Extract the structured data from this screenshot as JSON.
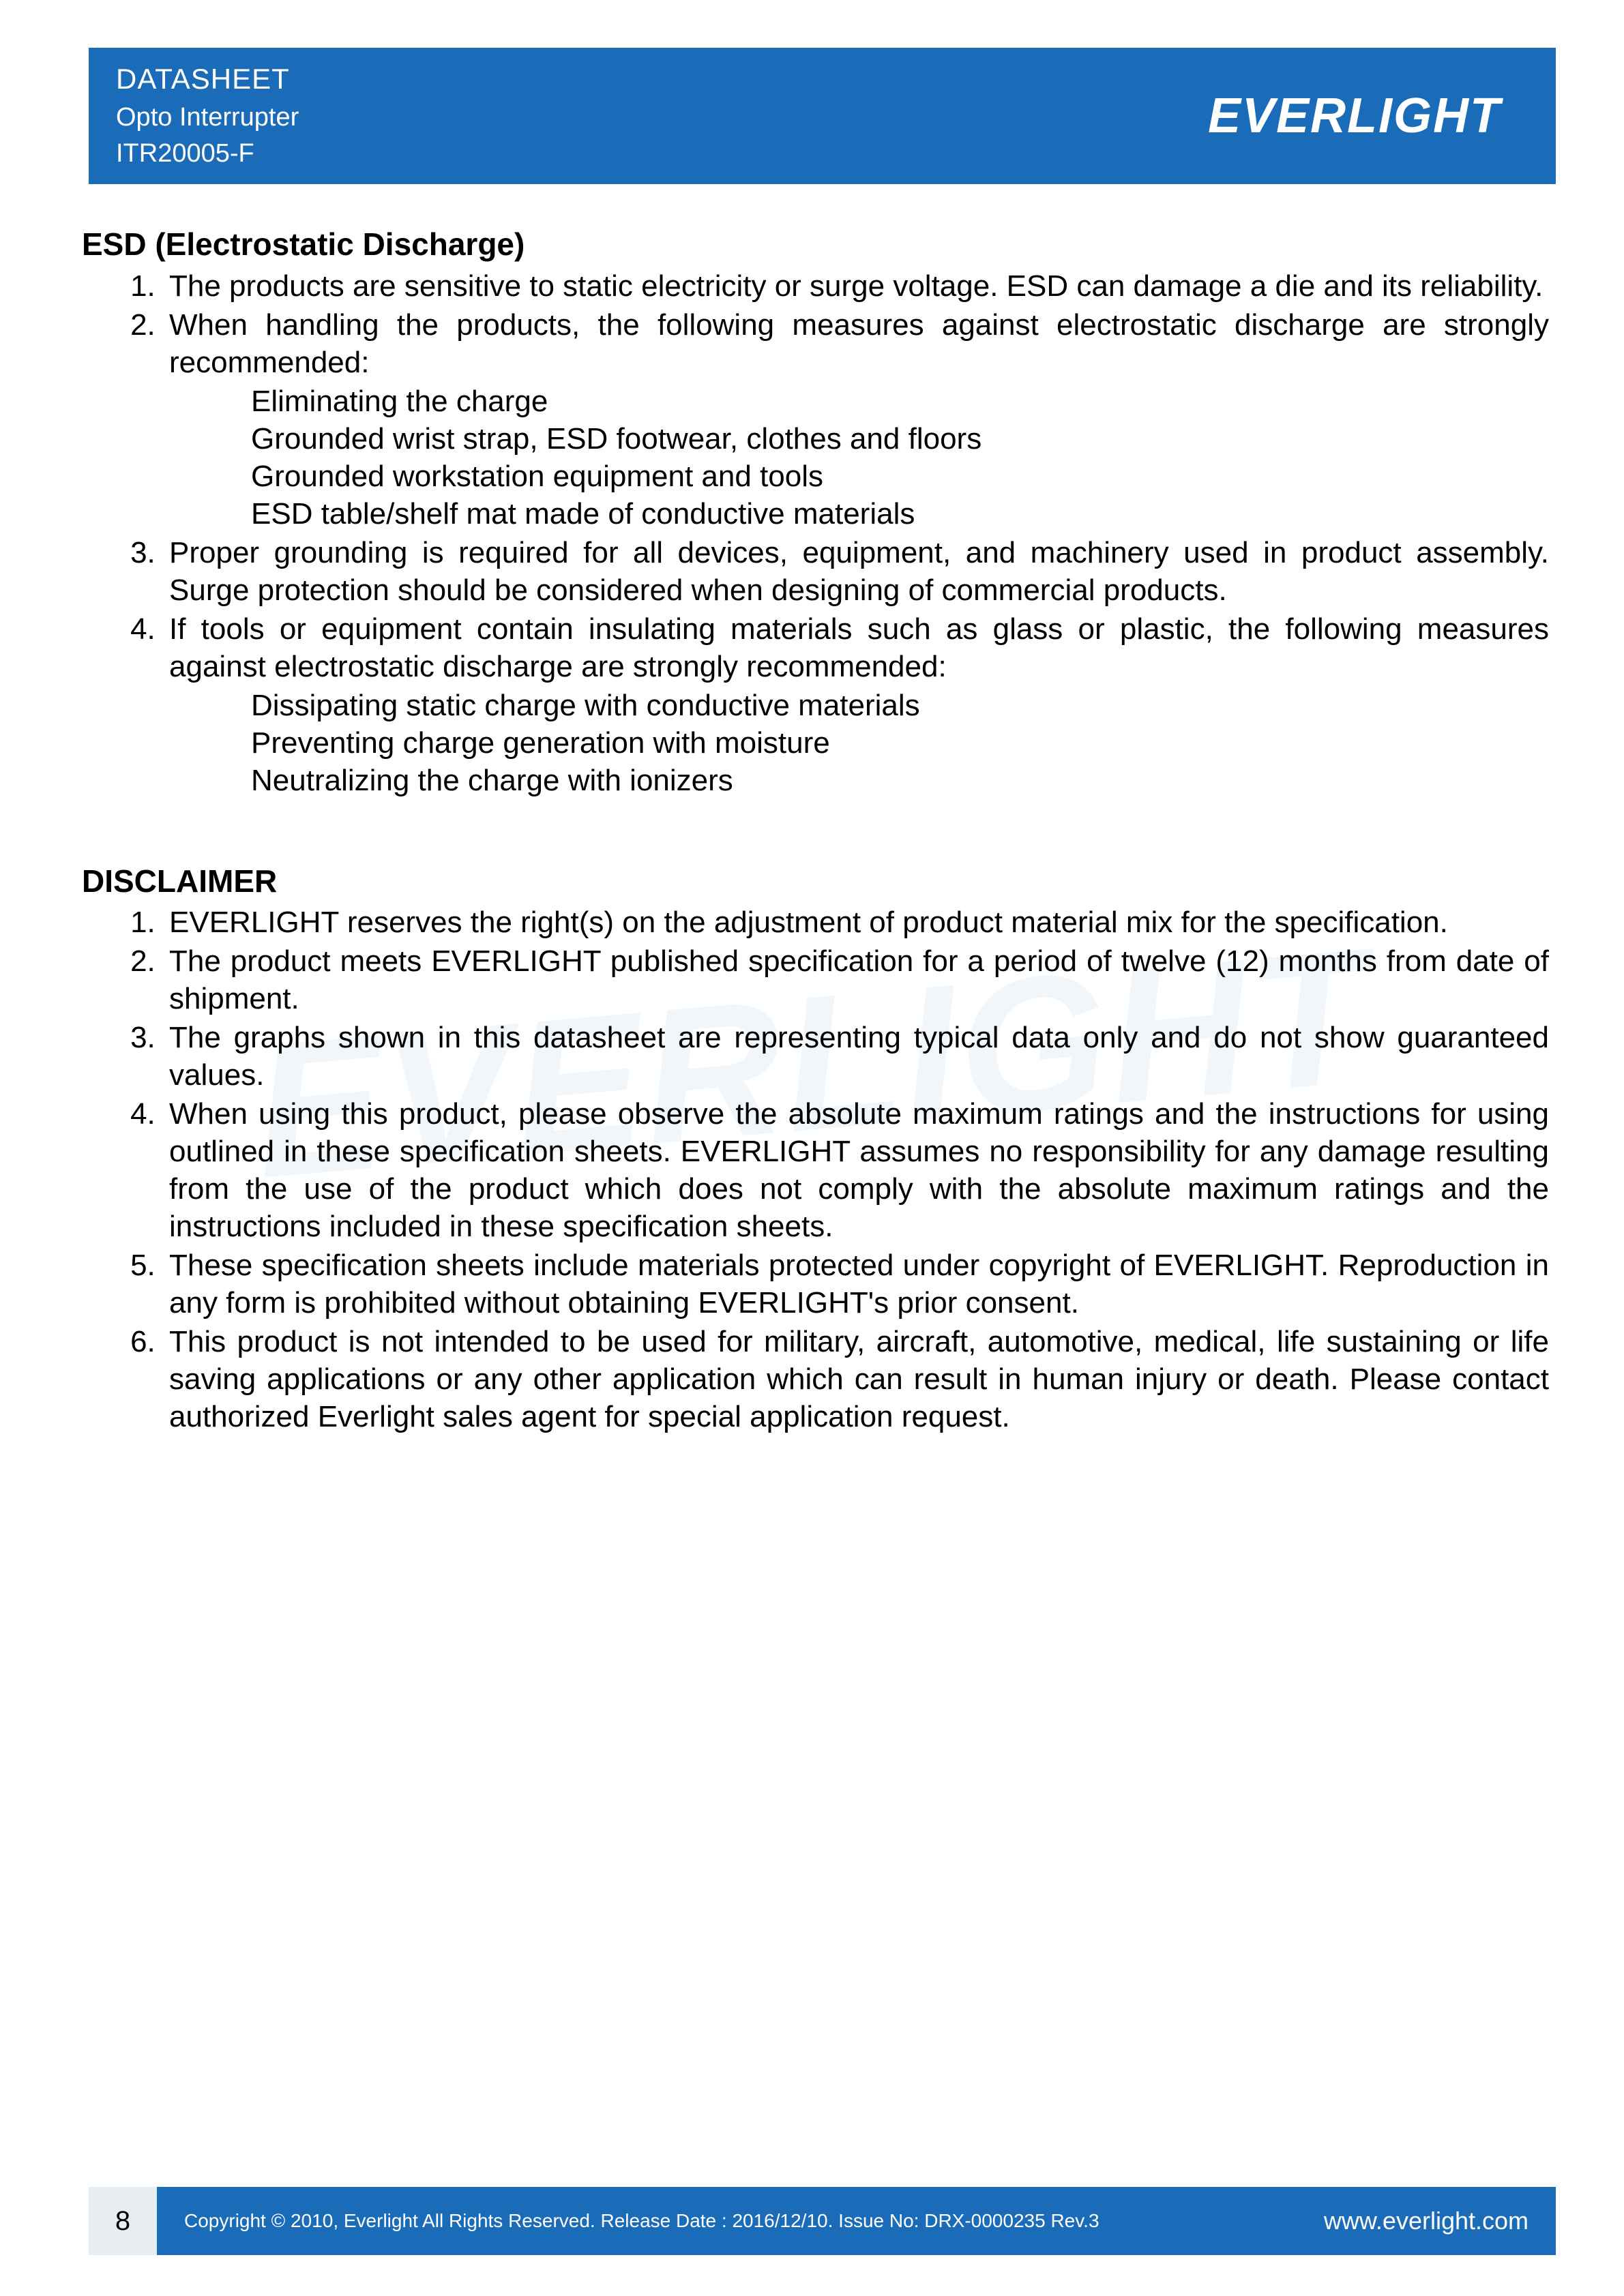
{
  "colors": {
    "brand_blue": "#1a6cb8",
    "text": "#000000",
    "white": "#ffffff",
    "pagenum_bg": "#e8edf2",
    "watermark": "rgba(200,220,240,0.25)"
  },
  "header": {
    "doc_type": "DATASHEET",
    "product_line": "Opto Interrupter",
    "part_number": "ITR20005-F",
    "logo_text": "EVERLIGHT"
  },
  "sections": [
    {
      "title": "ESD (Electrostatic Discharge)",
      "items": [
        {
          "text": "The products are sensitive to static electricity or surge voltage. ESD can damage a die and its reliability."
        },
        {
          "text": "When handling the products, the following measures against electrostatic discharge are strongly recommended:",
          "sub": [
            "Eliminating the charge",
            "Grounded wrist strap, ESD footwear, clothes and floors",
            "Grounded workstation equipment and tools",
            "ESD table/shelf mat made of conductive materials"
          ]
        },
        {
          "text": "Proper grounding is required for all devices, equipment, and machinery used in product assembly. Surge protection should be considered when designing of commercial products."
        },
        {
          "text": "If tools or equipment contain insulating materials such as glass or plastic, the following measures against electrostatic discharge are strongly recommended:",
          "sub": [
            "Dissipating static charge with conductive materials",
            "Preventing charge generation with moisture",
            "Neutralizing the charge with ionizers"
          ]
        }
      ]
    },
    {
      "title": "DISCLAIMER",
      "items": [
        {
          "text": "EVERLIGHT reserves the right(s) on the adjustment of product material mix for the specification."
        },
        {
          "text": "The product meets EVERLIGHT published specification for a period of twelve (12) months from date of shipment."
        },
        {
          "text": "The graphs shown in this datasheet are representing typical data only and do not show guaranteed values."
        },
        {
          "text": "When using this product, please observe the absolute maximum ratings and the instructions for using outlined in these specification sheets. EVERLIGHT assumes no responsibility for any damage resulting from the use of the product which does not comply with the absolute maximum ratings and the instructions included in these specification sheets."
        },
        {
          "text": "These specification sheets include materials protected under copyright of EVERLIGHT. Reproduction in any form is prohibited without obtaining EVERLIGHT's prior consent."
        },
        {
          "text": "This product is not intended to be used for military, aircraft, automotive, medical, life sustaining or life saving applications or any other application which can result in human injury or death. Please contact authorized Everlight sales agent for special application request."
        }
      ]
    }
  ],
  "footer": {
    "page_number": "8",
    "copyright": "Copyright © 2010, Everlight All Rights Reserved. Release Date : 2016/12/10. Issue No: DRX-0000235   Rev.3",
    "url": "www.everlight.com"
  },
  "watermark_text": "EVERLIGHT"
}
